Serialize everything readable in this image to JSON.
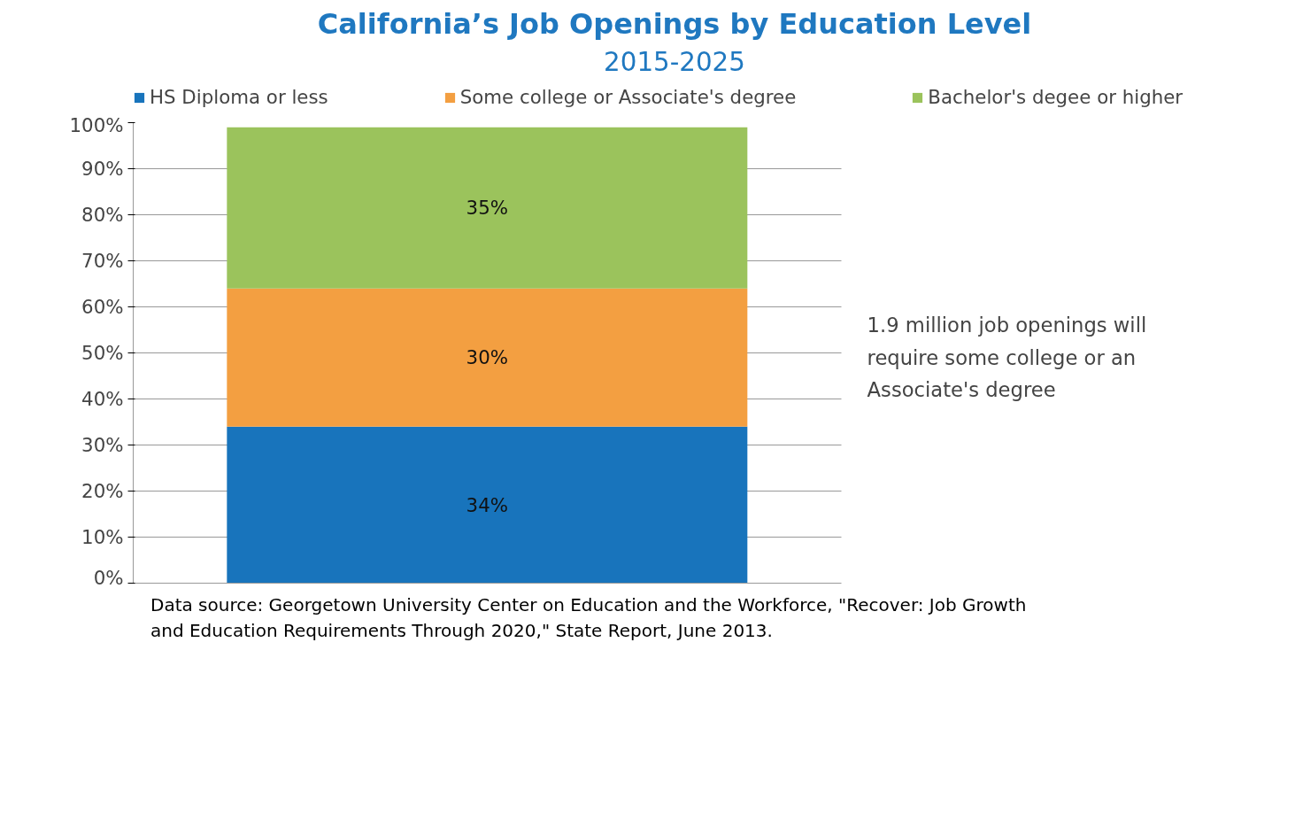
{
  "chart_data": {
    "type": "bar",
    "stacked": true,
    "title": "California’s Job Openings by Education Level",
    "subtitle": "2015-2025",
    "categories": [
      null
    ],
    "series": [
      {
        "name": "HS Diploma or less",
        "color": "#1874bc",
        "values": [
          34
        ],
        "value_labels": [
          "34%"
        ]
      },
      {
        "name": "Some college or Associate's degree",
        "color": "#f39f41",
        "values": [
          30
        ],
        "value_labels": [
          "30%"
        ]
      },
      {
        "name": "Bachelor's degee or higher",
        "color": "#9bc35c",
        "values": [
          35
        ],
        "value_labels": [
          "35%"
        ]
      }
    ],
    "ylim": [
      0,
      100
    ],
    "yticks": [
      {
        "value": 0,
        "label": "0%"
      },
      {
        "value": 10,
        "label": "10%"
      },
      {
        "value": 20,
        "label": "20%"
      },
      {
        "value": 30,
        "label": "30%"
      },
      {
        "value": 40,
        "label": "40%"
      },
      {
        "value": 50,
        "label": "50%"
      },
      {
        "value": 60,
        "label": "60%"
      },
      {
        "value": 70,
        "label": "70%"
      },
      {
        "value": 80,
        "label": "80%"
      },
      {
        "value": 90,
        "label": "90%"
      },
      {
        "value": 100,
        "label": "100%"
      }
    ],
    "grid": "y",
    "legend": "top",
    "annotations": [
      "1.9 million job openings will require some college or an Associate's degree",
      "Data source: Georgetown University Center on Education and the Workforce, \"Recover: Job Growth and Education Requirements Through 2020,\" State Report, June 2013."
    ]
  }
}
